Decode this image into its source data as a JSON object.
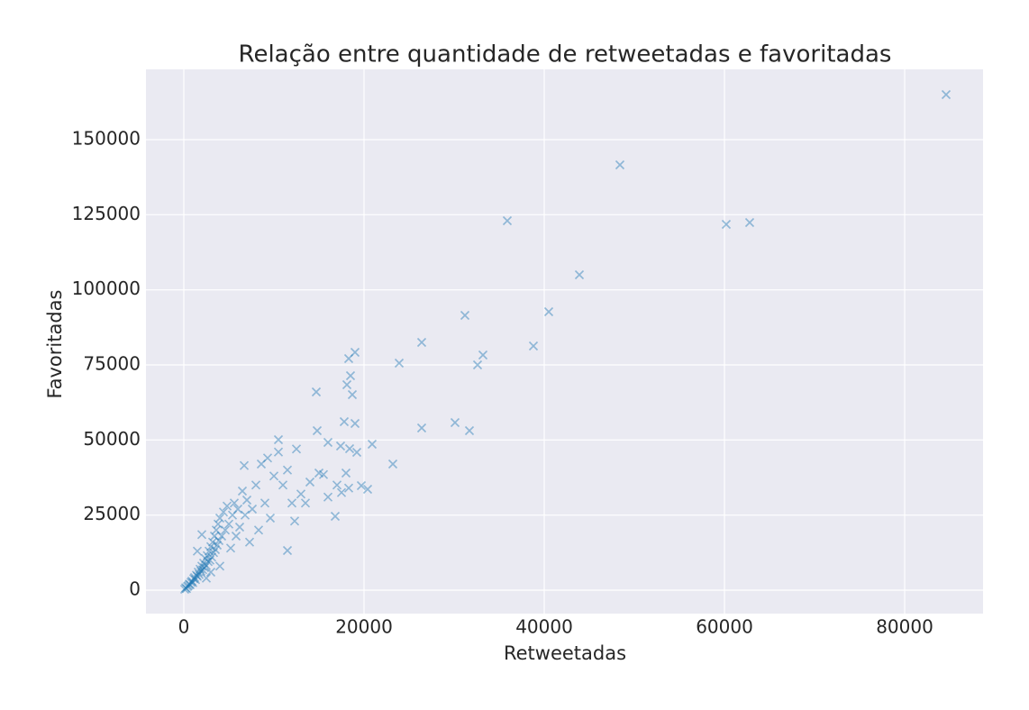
{
  "chart_data": {
    "type": "scatter",
    "title": "Relação entre quantidade de retweetadas e favoritadas",
    "xlabel": "Retweetadas",
    "ylabel": "Favoritadas",
    "color": "#1f77b4",
    "grid": true,
    "xlim": [
      -4200,
      88700
    ],
    "ylim": [
      -7800,
      173400
    ],
    "xticks": [
      0,
      20000,
      40000,
      60000,
      80000
    ],
    "yticks": [
      0,
      25000,
      50000,
      75000,
      100000,
      125000,
      150000
    ],
    "x": [
      84600,
      48400,
      35900,
      60200,
      62800,
      43900,
      40500,
      31200,
      26400,
      38800,
      33200,
      32600,
      23900,
      19000,
      18300,
      18500,
      18100,
      18700,
      14700,
      26400,
      30100,
      31700,
      17800,
      19000,
      14800,
      23200,
      20900,
      17400,
      18400,
      19200,
      16000,
      10500,
      16800,
      11500,
      19700,
      20400,
      100,
      200,
      300,
      400,
      500,
      600,
      700,
      800,
      900,
      1000,
      1100,
      1200,
      1300,
      1400,
      1500,
      1600,
      1700,
      1800,
      1900,
      2000,
      2100,
      2200,
      2300,
      2400,
      2500,
      2600,
      2700,
      2800,
      2900,
      3000,
      3100,
      3200,
      3300,
      3400,
      3500,
      3600,
      3700,
      3800,
      3900,
      4000,
      4200,
      4400,
      4600,
      4800,
      5000,
      5200,
      5400,
      5600,
      5800,
      6000,
      6200,
      6500,
      6700,
      6800,
      7000,
      7300,
      7600,
      8000,
      8300,
      8600,
      9000,
      9300,
      9600,
      10000,
      10500,
      11000,
      11500,
      12000,
      12300,
      12500,
      13000,
      13500,
      14000,
      15000,
      15500,
      16000,
      17000,
      17500,
      18000,
      18300,
      2000,
      1500,
      3000,
      4000,
      2500
    ],
    "values": [
      165000,
      141600,
      123000,
      121800,
      122400,
      105000,
      92700,
      91500,
      82500,
      81300,
      78300,
      75000,
      75600,
      79200,
      77100,
      71400,
      68400,
      65100,
      66000,
      54000,
      55800,
      53100,
      56100,
      55500,
      53100,
      42000,
      48600,
      48000,
      47100,
      45900,
      49200,
      50100,
      24600,
      13200,
      34800,
      33600,
      300,
      800,
      500,
      1200,
      1500,
      2000,
      1800,
      2600,
      3000,
      2500,
      3800,
      4200,
      3500,
      5000,
      4600,
      6000,
      5200,
      7000,
      6300,
      8000,
      6800,
      9000,
      7500,
      10500,
      8200,
      11500,
      9500,
      13000,
      10000,
      14500,
      11000,
      16000,
      12500,
      18000,
      13500,
      20000,
      15000,
      22000,
      16500,
      24000,
      18000,
      26000,
      20000,
      28000,
      22000,
      14000,
      25000,
      29000,
      18000,
      27000,
      21000,
      33000,
      41500,
      25000,
      30000,
      16000,
      27000,
      35000,
      20000,
      42000,
      29000,
      44000,
      24000,
      38000,
      46000,
      35000,
      40000,
      29000,
      23000,
      47000,
      32000,
      29000,
      36000,
      39000,
      38500,
      31000,
      35000,
      32500,
      39000,
      34000,
      18500,
      13000,
      6000,
      8000,
      4000
    ]
  }
}
